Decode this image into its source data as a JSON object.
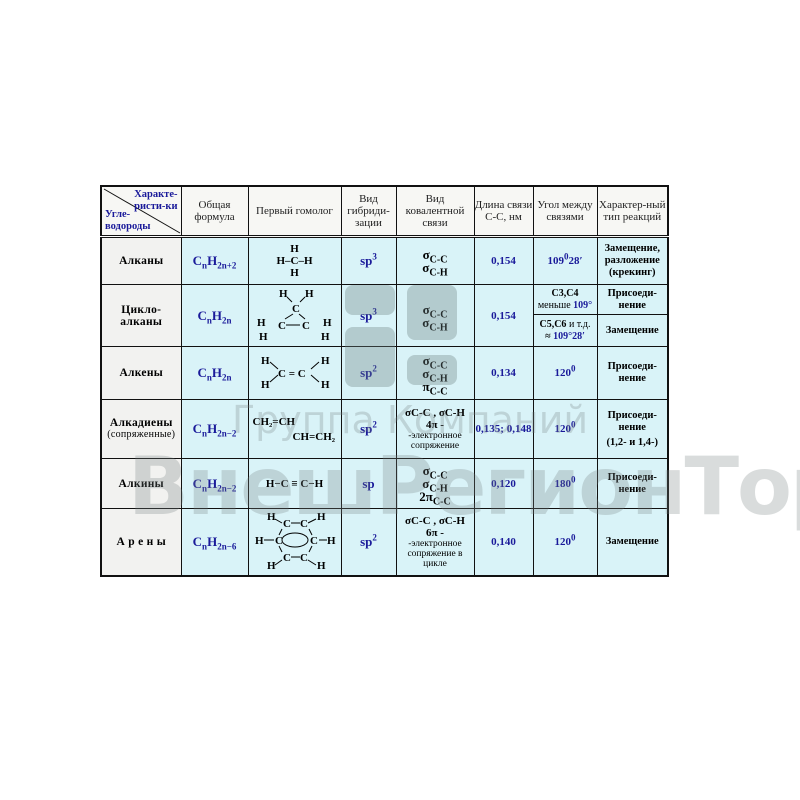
{
  "header": {
    "corner_top": "Характе-ристи-ки",
    "corner_bottom": "Угле-водороды",
    "formula": "Общая формула",
    "homolog": "Первый гомолог",
    "hybrid": "Вид гибриди-зации",
    "bond": "Вид ковалентной связи",
    "length": "Длина связи С-С, нм",
    "angle": "Угол между связями",
    "reaction": "Характер-ный тип реакций"
  },
  "rows": [
    {
      "name": "Алканы",
      "formula": {
        "c": "C",
        "n": "n",
        "h": "H",
        "sub": "2n+2"
      },
      "homolog": [
        "H",
        "H–C–H",
        "H"
      ],
      "hyb": "sp",
      "hyb_sup": "3",
      "bonds": [
        "σ|C-C",
        "σ|C-H"
      ],
      "length": "0,154",
      "angle": "109",
      "angle_sup": "0",
      "angle_min": "28",
      "angle_min_mark": "′",
      "reaction": "Замещение, разложение (крекинг)"
    },
    {
      "name": "Цикло-алканы",
      "formula": {
        "c": "C",
        "n": "n",
        "h": "H",
        "sub": "2n"
      },
      "homolog": {
        "top": "H",
        "top2": "H",
        "c": "C",
        "left": "H",
        "c1": "C",
        "c2": "C",
        "right": "H",
        "bl": "H",
        "br": "H"
      },
      "hyb": "sp",
      "hyb_sup": "3",
      "bonds": [
        "σ|C-C",
        "σ|C-H"
      ],
      "length": "0,154",
      "angle_a": {
        "label": "C3,C4",
        "word": "меньше",
        "value": "109°"
      },
      "angle_b": {
        "label": "C5,C6",
        "etc": "и т.д.",
        "approx": "≈",
        "value": "109°28′"
      },
      "reaction_a": "Присоеди-нение",
      "reaction_b": "Замещение"
    },
    {
      "name": "Алкены",
      "formula": {
        "c": "C",
        "n": "n",
        "h": "H",
        "sub": "2n"
      },
      "homolog": {
        "h1": "H",
        "h2": "H",
        "c": "C = C",
        "h3": "H",
        "h4": "H"
      },
      "hyb": "sp",
      "hyb_sup": "2",
      "bonds": [
        "σ|C-C",
        "σ|C-H",
        "π|C-C"
      ],
      "length": "0,134",
      "angle": "120",
      "angle_sup": "0",
      "reaction": "Присоеди-нение"
    },
    {
      "name": "Алкадиены",
      "name_note": "(сопряженные)",
      "formula": {
        "c": "C",
        "n": "n",
        "h": "H",
        "sub": "2n−2"
      },
      "homolog": {
        "l1": "CH₂=CH",
        "l2": "CH=CH₂"
      },
      "hyb": "sp",
      "hyb_sup": "2",
      "bonds_line": "σC-C , σC-H",
      "pi": "4π -",
      "pi_text": "-электронное сопряжение",
      "length": "0,135; 0,148",
      "angle": "120",
      "angle_sup": "0",
      "reaction": "Присоеди-нение",
      "reaction_note": "(1,2- и 1,4-)"
    },
    {
      "name": "Алкины",
      "formula": {
        "c": "C",
        "n": "n",
        "h": "H",
        "sub": "2n−2"
      },
      "homolog": "H−C ≡ C−H",
      "hyb": "sp",
      "hyb_sup": "",
      "bonds": [
        "σ|C-C",
        "σ|C-H",
        "2π|C-C"
      ],
      "length": "0,120",
      "angle": "180",
      "angle_sup": "0",
      "reaction": "Присоеди-нение"
    },
    {
      "name": "А р е н ы",
      "formula": {
        "c": "C",
        "n": "n",
        "h": "H",
        "sub": "2n−6"
      },
      "homolog": {
        "h": "H",
        "c": "C"
      },
      "hyb": "sp",
      "hyb_sup": "2",
      "bonds_line": "σC-C , σC-H",
      "pi": "6π -",
      "pi_text": "-электронное сопряжение в цикле",
      "length": "0,140",
      "angle": "120",
      "angle_sup": "0",
      "reaction": "Замещение"
    }
  ],
  "watermark": {
    "line1": "Группа Компаний",
    "line2": "ВнешРегионТорг"
  },
  "colors": {
    "cell": "#d9f3f8",
    "name_cell": "#f2f2f0",
    "blue_text": "#1a1a9a",
    "border": "#111111"
  }
}
